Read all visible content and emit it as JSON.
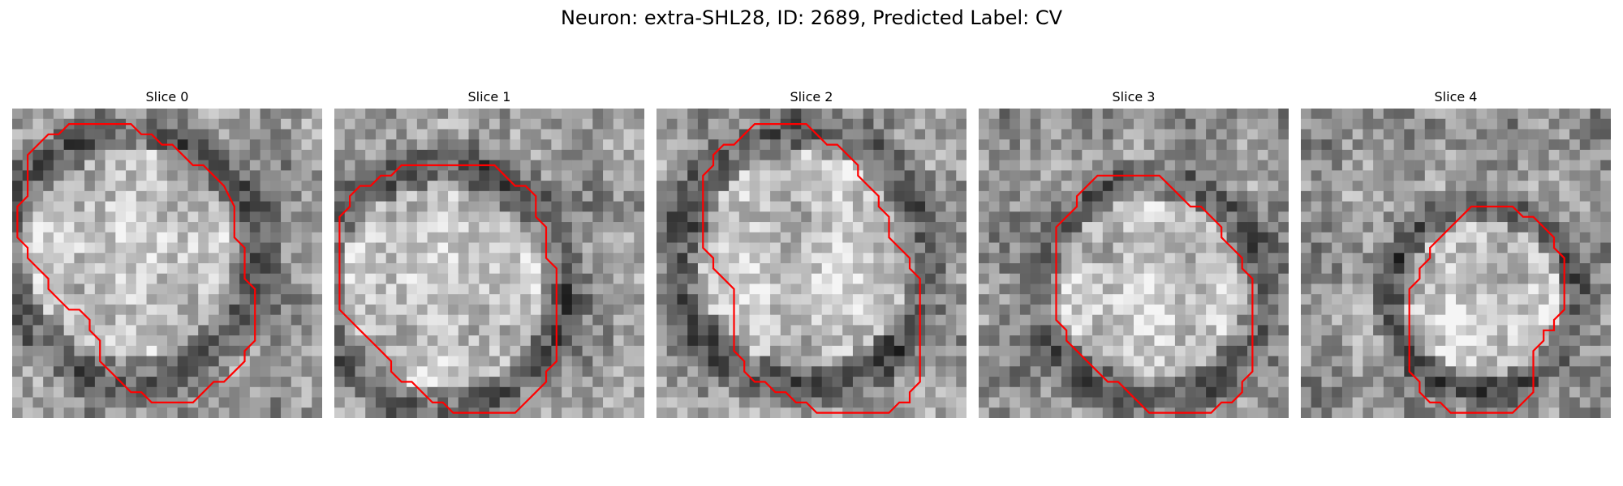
{
  "title": "Neuron: extra-SHL28, ID: 2689, Predicted Label: CV",
  "contour_color": "#ff0000",
  "panels": [
    {
      "label": "Slice 0",
      "contour": [
        [
          8,
          1
        ],
        [
          11,
          1
        ],
        [
          12,
          2
        ],
        [
          13,
          2
        ],
        [
          14,
          3
        ],
        [
          15,
          3
        ],
        [
          16,
          4
        ],
        [
          17,
          5
        ],
        [
          18,
          5
        ],
        [
          19,
          6
        ],
        [
          20,
          7
        ],
        [
          21,
          9
        ],
        [
          21,
          12
        ],
        [
          22,
          13
        ],
        [
          22,
          16
        ],
        [
          23,
          17
        ],
        [
          23,
          22
        ],
        [
          22,
          23
        ],
        [
          22,
          24
        ],
        [
          21,
          25
        ],
        [
          20,
          26
        ],
        [
          19,
          26
        ],
        [
          18,
          27
        ],
        [
          17,
          28
        ],
        [
          13,
          28
        ],
        [
          12,
          27
        ],
        [
          11,
          27
        ],
        [
          10,
          26
        ],
        [
          9,
          25
        ],
        [
          8,
          24
        ],
        [
          8,
          22
        ],
        [
          7,
          21
        ],
        [
          7,
          20
        ],
        [
          6,
          19
        ],
        [
          5,
          19
        ],
        [
          4,
          18
        ],
        [
          3,
          17
        ],
        [
          3,
          16
        ],
        [
          2,
          15
        ],
        [
          1,
          14
        ],
        [
          1,
          13
        ],
        [
          0,
          12
        ],
        [
          0,
          9
        ],
        [
          1,
          8
        ],
        [
          1,
          4
        ],
        [
          2,
          3
        ],
        [
          3,
          2
        ],
        [
          4,
          2
        ],
        [
          5,
          1
        ]
      ]
    },
    {
      "label": "Slice 1",
      "contour": [
        [
          4,
          6
        ],
        [
          5,
          6
        ],
        [
          6,
          5
        ],
        [
          15,
          5
        ],
        [
          16,
          6
        ],
        [
          17,
          7
        ],
        [
          18,
          7
        ],
        [
          19,
          8
        ],
        [
          19,
          10
        ],
        [
          20,
          11
        ],
        [
          20,
          14
        ],
        [
          21,
          15
        ],
        [
          21,
          24
        ],
        [
          20,
          25
        ],
        [
          20,
          26
        ],
        [
          19,
          27
        ],
        [
          18,
          28
        ],
        [
          17,
          29
        ],
        [
          11,
          29
        ],
        [
          10,
          28
        ],
        [
          9,
          28
        ],
        [
          8,
          27
        ],
        [
          7,
          26
        ],
        [
          6,
          26
        ],
        [
          5,
          25
        ],
        [
          5,
          24
        ],
        [
          4,
          23
        ],
        [
          3,
          22
        ],
        [
          2,
          21
        ],
        [
          1,
          20
        ],
        [
          0,
          19
        ],
        [
          0,
          10
        ],
        [
          1,
          9
        ],
        [
          1,
          8
        ],
        [
          2,
          7
        ],
        [
          3,
          7
        ]
      ]
    },
    {
      "label": "Slice 2",
      "contour": [
        [
          9,
          1
        ],
        [
          14,
          1
        ],
        [
          15,
          2
        ],
        [
          16,
          3
        ],
        [
          17,
          3
        ],
        [
          18,
          4
        ],
        [
          19,
          5
        ],
        [
          19,
          6
        ],
        [
          20,
          7
        ],
        [
          21,
          8
        ],
        [
          21,
          9
        ],
        [
          22,
          10
        ],
        [
          22,
          12
        ],
        [
          23,
          13
        ],
        [
          24,
          14
        ],
        [
          24,
          15
        ],
        [
          25,
          16
        ],
        [
          25,
          26
        ],
        [
          24,
          27
        ],
        [
          24,
          28
        ],
        [
          23,
          28
        ],
        [
          22,
          29
        ],
        [
          15,
          29
        ],
        [
          14,
          28
        ],
        [
          13,
          28
        ],
        [
          12,
          27
        ],
        [
          11,
          27
        ],
        [
          10,
          26
        ],
        [
          9,
          26
        ],
        [
          8,
          25
        ],
        [
          8,
          24
        ],
        [
          7,
          23
        ],
        [
          7,
          17
        ],
        [
          6,
          16
        ],
        [
          5,
          15
        ],
        [
          5,
          14
        ],
        [
          4,
          13
        ],
        [
          4,
          6
        ],
        [
          5,
          5
        ],
        [
          5,
          4
        ],
        [
          6,
          3
        ],
        [
          7,
          3
        ],
        [
          8,
          2
        ]
      ]
    },
    {
      "label": "Slice 3",
      "contour": [
        [
          11,
          6
        ],
        [
          17,
          6
        ],
        [
          18,
          7
        ],
        [
          19,
          8
        ],
        [
          20,
          9
        ],
        [
          21,
          9
        ],
        [
          22,
          10
        ],
        [
          23,
          11
        ],
        [
          23,
          12
        ],
        [
          24,
          13
        ],
        [
          25,
          14
        ],
        [
          25,
          15
        ],
        [
          26,
          16
        ],
        [
          26,
          25
        ],
        [
          25,
          26
        ],
        [
          25,
          27
        ],
        [
          24,
          28
        ],
        [
          23,
          28
        ],
        [
          22,
          29
        ],
        [
          16,
          29
        ],
        [
          15,
          28
        ],
        [
          14,
          27
        ],
        [
          13,
          26
        ],
        [
          12,
          26
        ],
        [
          11,
          25
        ],
        [
          10,
          24
        ],
        [
          9,
          23
        ],
        [
          8,
          22
        ],
        [
          8,
          21
        ],
        [
          7,
          20
        ],
        [
          7,
          11
        ],
        [
          8,
          10
        ],
        [
          9,
          9
        ],
        [
          9,
          8
        ],
        [
          10,
          7
        ]
      ]
    },
    {
      "label": "Slice 4",
      "contour": [
        [
          14,
          29
        ],
        [
          13,
          28
        ],
        [
          12,
          28
        ],
        [
          11,
          27
        ],
        [
          11,
          26
        ],
        [
          10,
          25
        ],
        [
          10,
          17
        ],
        [
          11,
          16
        ],
        [
          11,
          15
        ],
        [
          12,
          14
        ],
        [
          12,
          13
        ],
        [
          13,
          12
        ],
        [
          14,
          11
        ],
        [
          15,
          10
        ],
        [
          16,
          9
        ],
        [
          20,
          9
        ],
        [
          21,
          10
        ],
        [
          22,
          10
        ],
        [
          23,
          11
        ],
        [
          24,
          12
        ],
        [
          24,
          13
        ],
        [
          25,
          14
        ],
        [
          25,
          19
        ],
        [
          24,
          20
        ],
        [
          24,
          21
        ],
        [
          23,
          21
        ],
        [
          23,
          22
        ],
        [
          22,
          23
        ],
        [
          22,
          27
        ],
        [
          21,
          28
        ],
        [
          20,
          29
        ]
      ]
    }
  ]
}
